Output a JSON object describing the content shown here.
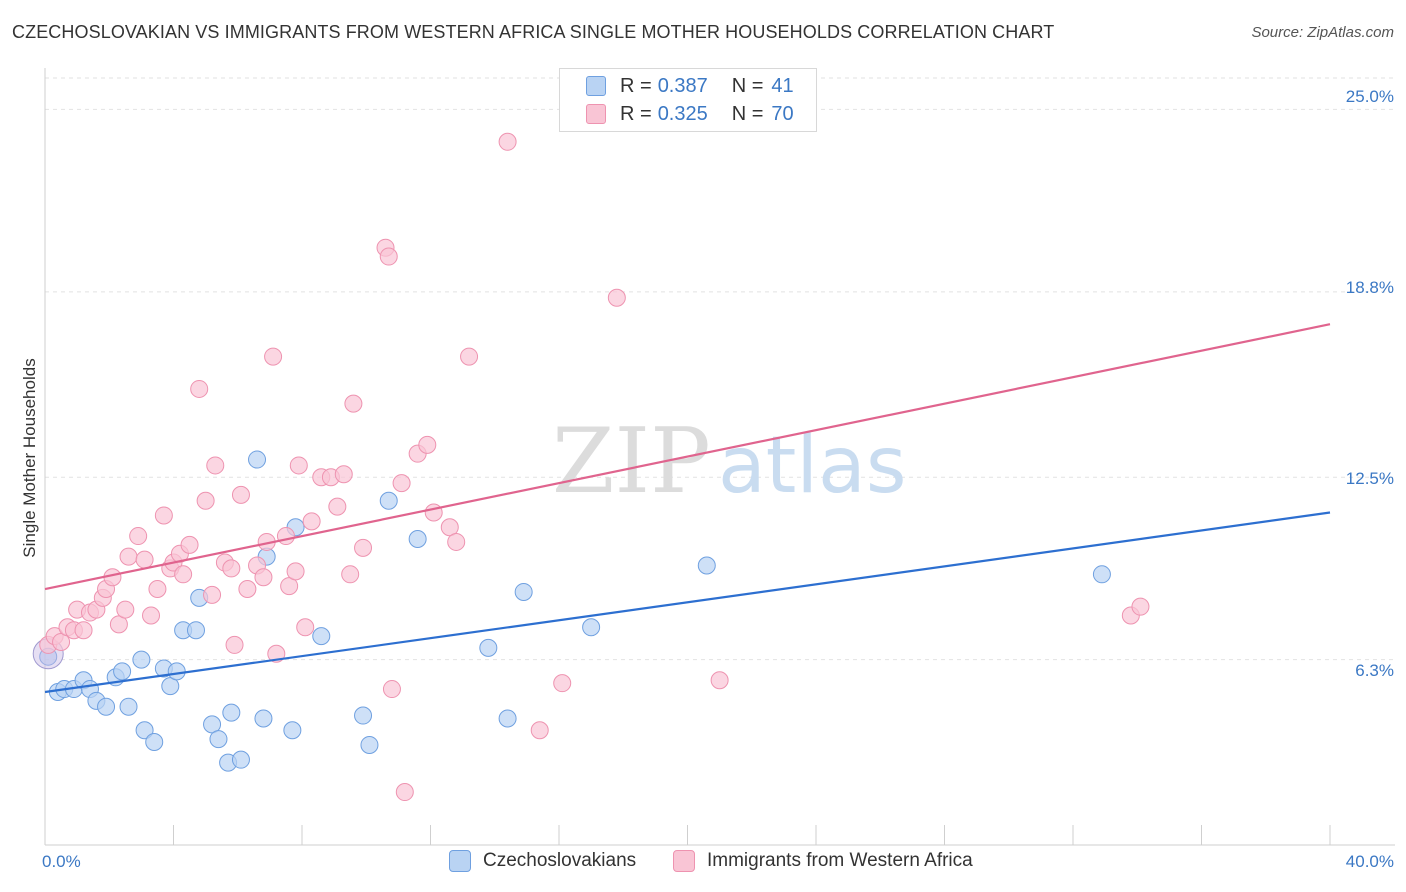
{
  "title": "CZECHOSLOVAKIAN VS IMMIGRANTS FROM WESTERN AFRICA SINGLE MOTHER HOUSEHOLDS CORRELATION CHART",
  "source": "Source: ZipAtlas.com",
  "watermark": {
    "zip": "ZIP",
    "atlas": "atlas"
  },
  "legend": {
    "rows": [
      {
        "r_label": "R = ",
        "r_value": "0.387",
        "n_label": "N = ",
        "n_value": "41"
      },
      {
        "r_label": "R = ",
        "r_value": "0.325",
        "n_label": "N = ",
        "n_value": "70"
      }
    ]
  },
  "chart_data": {
    "type": "scatter",
    "title": "CZECHOSLOVAKIAN VS IMMIGRANTS FROM WESTERN AFRICA SINGLE MOTHER HOUSEHOLDS CORRELATION CHART",
    "xlabel": "",
    "ylabel": "Single Mother Households",
    "xlim": [
      0,
      40
    ],
    "ylim": [
      0,
      26
    ],
    "x_tick_labels": [
      "0.0%",
      "40.0%"
    ],
    "y_ticks": [
      {
        "value": 6.3,
        "label": "6.3%"
      },
      {
        "value": 12.5,
        "label": "12.5%"
      },
      {
        "value": 18.8,
        "label": "18.8%"
      },
      {
        "value": 25.0,
        "label": "25.0%"
      }
    ],
    "series": [
      {
        "name": "Czechoslovakians",
        "color": "#6fa0e0",
        "fill": "#b9d3f3",
        "line_color": "#2d6fd0",
        "trend": {
          "x0": 0,
          "y0": 5.2,
          "x1": 40,
          "y1": 11.3
        },
        "points": [
          [
            0.1,
            6.4
          ],
          [
            0.4,
            5.2
          ],
          [
            0.6,
            5.3
          ],
          [
            0.9,
            5.3
          ],
          [
            1.2,
            5.6
          ],
          [
            1.4,
            5.3
          ],
          [
            1.6,
            4.9
          ],
          [
            1.9,
            4.7
          ],
          [
            2.2,
            5.7
          ],
          [
            2.4,
            5.9
          ],
          [
            2.6,
            4.7
          ],
          [
            3.0,
            6.3
          ],
          [
            3.1,
            3.9
          ],
          [
            3.4,
            3.5
          ],
          [
            3.7,
            6.0
          ],
          [
            3.9,
            5.4
          ],
          [
            4.1,
            5.9
          ],
          [
            4.3,
            7.3
          ],
          [
            4.7,
            7.3
          ],
          [
            4.8,
            8.4
          ],
          [
            5.2,
            4.1
          ],
          [
            5.4,
            3.6
          ],
          [
            5.7,
            2.8
          ],
          [
            5.8,
            4.5
          ],
          [
            6.1,
            2.9
          ],
          [
            6.6,
            13.1
          ],
          [
            6.8,
            4.3
          ],
          [
            6.9,
            9.8
          ],
          [
            7.7,
            3.9
          ],
          [
            7.8,
            10.8
          ],
          [
            8.6,
            7.1
          ],
          [
            9.9,
            4.4
          ],
          [
            10.1,
            3.4
          ],
          [
            10.7,
            11.7
          ],
          [
            11.6,
            10.4
          ],
          [
            13.8,
            6.7
          ],
          [
            14.4,
            4.3
          ],
          [
            14.9,
            8.6
          ],
          [
            17.0,
            7.4
          ],
          [
            20.6,
            9.5
          ],
          [
            32.9,
            9.2
          ]
        ]
      },
      {
        "name": "Immigrants from Western Africa",
        "color": "#ee93b0",
        "fill": "#f9c5d5",
        "line_color": "#e0648e",
        "trend": {
          "x0": 0,
          "y0": 8.7,
          "x1": 40,
          "y1": 17.7
        },
        "points": [
          [
            0.1,
            6.8
          ],
          [
            0.3,
            7.1
          ],
          [
            0.5,
            6.9
          ],
          [
            0.7,
            7.4
          ],
          [
            0.9,
            7.3
          ],
          [
            1.0,
            8.0
          ],
          [
            1.2,
            7.3
          ],
          [
            1.4,
            7.9
          ],
          [
            1.6,
            8.0
          ],
          [
            1.8,
            8.4
          ],
          [
            1.9,
            8.7
          ],
          [
            2.1,
            9.1
          ],
          [
            2.3,
            7.5
          ],
          [
            2.5,
            8.0
          ],
          [
            2.6,
            9.8
          ],
          [
            2.9,
            10.5
          ],
          [
            3.1,
            9.7
          ],
          [
            3.3,
            7.8
          ],
          [
            3.5,
            8.7
          ],
          [
            3.7,
            11.2
          ],
          [
            3.9,
            9.4
          ],
          [
            4.0,
            9.6
          ],
          [
            4.2,
            9.9
          ],
          [
            4.3,
            9.2
          ],
          [
            4.5,
            10.2
          ],
          [
            4.8,
            15.5
          ],
          [
            5.0,
            11.7
          ],
          [
            5.2,
            8.5
          ],
          [
            5.3,
            12.9
          ],
          [
            5.6,
            9.6
          ],
          [
            5.8,
            9.4
          ],
          [
            5.9,
            6.8
          ],
          [
            6.1,
            11.9
          ],
          [
            6.3,
            8.7
          ],
          [
            6.6,
            9.5
          ],
          [
            6.8,
            9.1
          ],
          [
            6.9,
            10.3
          ],
          [
            7.1,
            16.6
          ],
          [
            7.2,
            6.5
          ],
          [
            7.5,
            10.5
          ],
          [
            7.6,
            8.8
          ],
          [
            7.8,
            9.3
          ],
          [
            7.9,
            12.9
          ],
          [
            8.1,
            7.4
          ],
          [
            8.3,
            11.0
          ],
          [
            8.6,
            12.5
          ],
          [
            8.9,
            12.5
          ],
          [
            9.1,
            11.5
          ],
          [
            9.3,
            12.6
          ],
          [
            9.5,
            9.2
          ],
          [
            9.6,
            15.0
          ],
          [
            9.9,
            10.1
          ],
          [
            10.6,
            20.3
          ],
          [
            10.7,
            20.0
          ],
          [
            10.8,
            5.3
          ],
          [
            11.1,
            12.3
          ],
          [
            11.2,
            1.8
          ],
          [
            11.6,
            13.3
          ],
          [
            11.9,
            13.6
          ],
          [
            12.1,
            11.3
          ],
          [
            12.6,
            10.8
          ],
          [
            12.8,
            10.3
          ],
          [
            13.2,
            16.6
          ],
          [
            14.4,
            23.9
          ],
          [
            15.4,
            3.9
          ],
          [
            16.1,
            5.5
          ],
          [
            17.8,
            18.6
          ],
          [
            21.0,
            5.6
          ],
          [
            33.8,
            7.8
          ],
          [
            34.1,
            8.1
          ]
        ]
      }
    ]
  }
}
